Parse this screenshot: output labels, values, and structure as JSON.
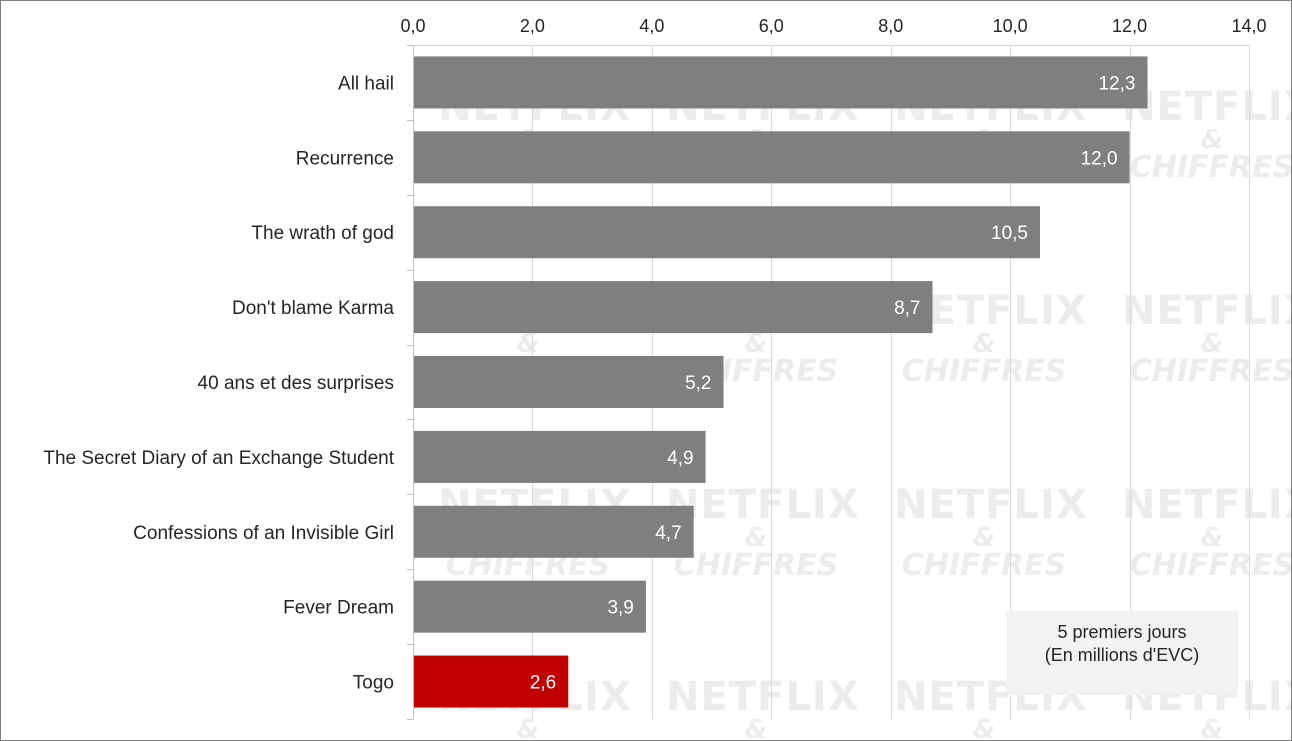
{
  "chart_data": {
    "type": "bar",
    "orientation": "horizontal",
    "categories": [
      "All hail",
      "Recurrence",
      "The wrath of god",
      "Don't blame Karma",
      "40 ans et des surprises",
      "The Secret Diary of an Exchange Student",
      "Confessions of an Invisible Girl",
      "Fever Dream",
      "Togo"
    ],
    "values": [
      12.3,
      12.0,
      10.5,
      8.7,
      5.2,
      4.9,
      4.7,
      3.9,
      2.6
    ],
    "value_labels": [
      "12,3",
      "12,0",
      "10,5",
      "8,7",
      "5,2",
      "4,9",
      "4,7",
      "3,9",
      "2,6"
    ],
    "xlim": [
      0,
      14
    ],
    "xticks": [
      "0,0",
      "2,0",
      "4,0",
      "6,0",
      "8,0",
      "10,0",
      "12,0",
      "14,0"
    ],
    "x_axis_position": "top",
    "grid": true,
    "colors": {
      "bar": "#7f7f7f",
      "highlight": "#c00000",
      "grid": "#d9d9d9"
    },
    "highlight": "Togo",
    "annotation": [
      "5 premiers jours",
      "(En millions d'EVC)"
    ]
  },
  "watermark": {
    "line1": "NETFLIX",
    "line2": "&",
    "line3": "CHIFFRES"
  }
}
